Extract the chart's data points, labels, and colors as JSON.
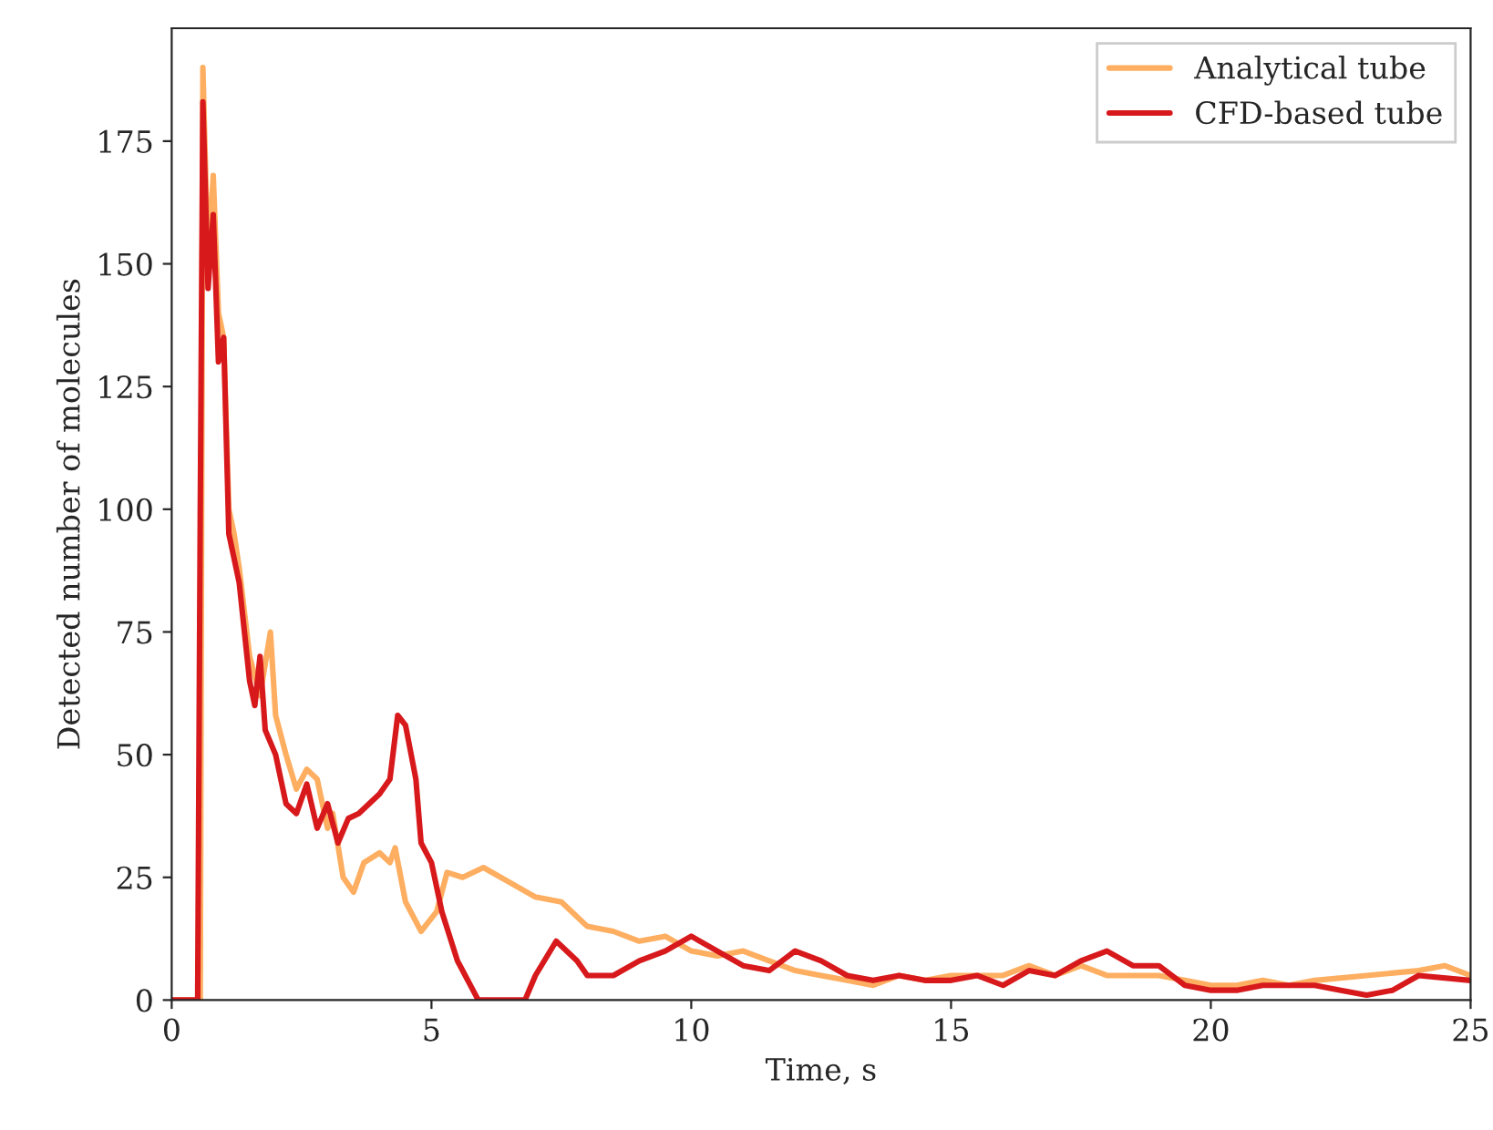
{
  "chart_data": {
    "type": "line",
    "xlabel": "Time, s",
    "ylabel": "Detected number of molecules",
    "xlim": [
      0,
      25
    ],
    "ylim": [
      0,
      198
    ],
    "xticks": [
      0,
      5,
      10,
      15,
      20,
      25
    ],
    "yticks": [
      0,
      25,
      50,
      75,
      100,
      125,
      150,
      175
    ],
    "grid": false,
    "legend": "top right",
    "marker": "none",
    "line_style": "solid",
    "series": [
      {
        "name": "Analytical tube",
        "color": "#fdae61",
        "x": [
          0,
          0.5,
          0.55,
          0.6,
          0.7,
          0.8,
          0.9,
          1.0,
          1.1,
          1.2,
          1.3,
          1.5,
          1.7,
          1.9,
          2.0,
          2.2,
          2.4,
          2.6,
          2.8,
          3.0,
          3.1,
          3.3,
          3.5,
          3.7,
          4.0,
          4.2,
          4.3,
          4.5,
          4.8,
          5.1,
          5.3,
          5.6,
          6.0,
          6.5,
          7.0,
          7.5,
          8.0,
          8.5,
          9.0,
          9.5,
          10,
          10.5,
          11,
          11.5,
          12,
          12.5,
          13,
          13.5,
          14,
          14.5,
          15,
          15.5,
          16,
          16.5,
          17,
          17.5,
          18,
          18.5,
          19,
          19.5,
          20,
          20.5,
          21,
          21.5,
          22,
          23,
          24,
          24.5,
          25
        ],
        "values": [
          0,
          0,
          0,
          190,
          150,
          168,
          140,
          135,
          100,
          95,
          88,
          70,
          62,
          75,
          58,
          50,
          43,
          47,
          45,
          35,
          38,
          25,
          22,
          28,
          30,
          28,
          31,
          20,
          14,
          18,
          26,
          25,
          27,
          24,
          21,
          20,
          15,
          14,
          12,
          13,
          10,
          9,
          10,
          8,
          6,
          5,
          4,
          3,
          5,
          4,
          5,
          5,
          5,
          7,
          5,
          7,
          5,
          5,
          5,
          4,
          3,
          3,
          4,
          3,
          4,
          5,
          6,
          7,
          5
        ]
      },
      {
        "name": "CFD-based tube",
        "color": "#d7191c",
        "x": [
          0,
          0.5,
          0.55,
          0.6,
          0.7,
          0.8,
          0.9,
          1.0,
          1.1,
          1.2,
          1.3,
          1.5,
          1.6,
          1.7,
          1.8,
          2.0,
          2.2,
          2.4,
          2.6,
          2.8,
          3.0,
          3.2,
          3.4,
          3.6,
          3.8,
          4.0,
          4.2,
          4.35,
          4.5,
          4.7,
          4.8,
          5.0,
          5.2,
          5.5,
          5.8,
          5.9,
          6.5,
          6.8,
          7.0,
          7.4,
          7.8,
          8.0,
          8.5,
          9.0,
          9.5,
          10,
          10.5,
          11,
          11.5,
          12,
          12.5,
          13,
          13.5,
          14,
          14.5,
          15,
          15.5,
          16,
          16.5,
          17,
          17.5,
          18,
          18.5,
          19,
          19.5,
          20,
          20.5,
          21,
          22,
          22.5,
          23,
          23.5,
          24,
          25
        ],
        "values": [
          0,
          0,
          100,
          183,
          145,
          160,
          130,
          135,
          95,
          90,
          85,
          65,
          60,
          70,
          55,
          50,
          40,
          38,
          44,
          35,
          40,
          32,
          37,
          38,
          40,
          42,
          45,
          58,
          56,
          45,
          32,
          28,
          18,
          8,
          2,
          0,
          0,
          0,
          5,
          12,
          8,
          5,
          5,
          8,
          10,
          13,
          10,
          7,
          6,
          10,
          8,
          5,
          4,
          5,
          4,
          4,
          5,
          3,
          6,
          5,
          8,
          10,
          7,
          7,
          3,
          2,
          2,
          3,
          3,
          2,
          1,
          2,
          5,
          4
        ]
      }
    ]
  }
}
